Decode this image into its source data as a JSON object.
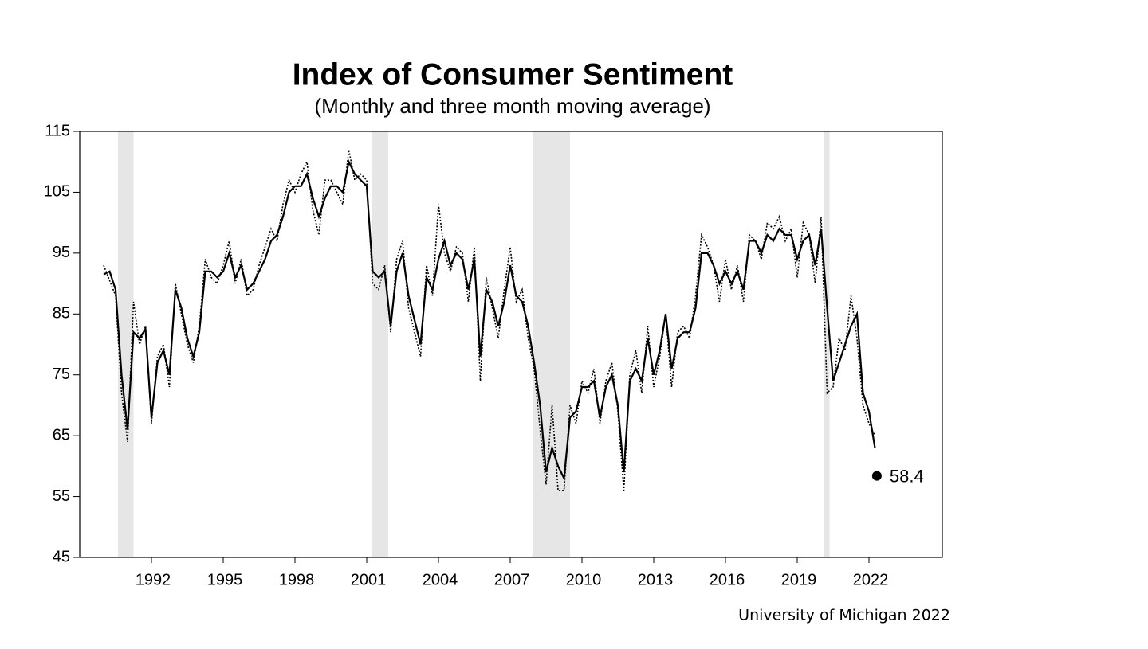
{
  "chart_data": {
    "type": "line",
    "title": "Index of Consumer Sentiment",
    "subtitle": "(Monthly and three month moving average)",
    "source": "University of Michigan 2022",
    "x": [
      1990,
      1990.25,
      1990.5,
      1990.75,
      1991,
      1991.25,
      1991.5,
      1991.75,
      1992,
      1992.25,
      1992.5,
      1992.75,
      1993,
      1993.25,
      1993.5,
      1993.75,
      1994,
      1994.25,
      1994.5,
      1994.75,
      1995,
      1995.25,
      1995.5,
      1995.75,
      1996,
      1996.25,
      1996.5,
      1996.75,
      1997,
      1997.25,
      1997.5,
      1997.75,
      1998,
      1998.25,
      1998.5,
      1998.75,
      1999,
      1999.25,
      1999.5,
      1999.75,
      2000,
      2000.25,
      2000.5,
      2000.75,
      2001,
      2001.25,
      2001.5,
      2001.75,
      2002,
      2002.25,
      2002.5,
      2002.75,
      2003,
      2003.25,
      2003.5,
      2003.75,
      2004,
      2004.25,
      2004.5,
      2004.75,
      2005,
      2005.25,
      2005.5,
      2005.75,
      2006,
      2006.25,
      2006.5,
      2006.75,
      2007,
      2007.25,
      2007.5,
      2007.75,
      2008,
      2008.25,
      2008.5,
      2008.75,
      2009,
      2009.25,
      2009.5,
      2009.75,
      2010,
      2010.25,
      2010.5,
      2010.75,
      2011,
      2011.25,
      2011.5,
      2011.75,
      2012,
      2012.25,
      2012.5,
      2012.75,
      2013,
      2013.25,
      2013.5,
      2013.75,
      2014,
      2014.25,
      2014.5,
      2014.75,
      2015,
      2015.25,
      2015.5,
      2015.75,
      2016,
      2016.25,
      2016.5,
      2016.75,
      2017,
      2017.25,
      2017.5,
      2017.75,
      2018,
      2018.25,
      2018.5,
      2018.75,
      2019,
      2019.25,
      2019.5,
      2019.75,
      2020,
      2020.25,
      2020.5,
      2020.75,
      2021,
      2021.25,
      2021.5,
      2021.75,
      2022,
      2022.25
    ],
    "series": [
      {
        "color": "#000000",
        "line_style": "dotted",
        "values": [
          93,
          90.5,
          88,
          72,
          64,
          87,
          80,
          83,
          67,
          78,
          80,
          73,
          90,
          85,
          80,
          77,
          83,
          94,
          91,
          90,
          93,
          97,
          90,
          94,
          88,
          89,
          93,
          96,
          99,
          97,
          103,
          107,
          105,
          108,
          110,
          102,
          98,
          107,
          107,
          105,
          103,
          112,
          107,
          108,
          107,
          90,
          89,
          93,
          82,
          94,
          97,
          86,
          82,
          78,
          93,
          88,
          103,
          95,
          92,
          96,
          95,
          87,
          96,
          74,
          91,
          86,
          81,
          89,
          96,
          87,
          89,
          81,
          76,
          66,
          57,
          70,
          56,
          56,
          70,
          67,
          74,
          72,
          76,
          67,
          74,
          77,
          69,
          56,
          75,
          79,
          72,
          83,
          73,
          78,
          85,
          73,
          82,
          83,
          81,
          88,
          98,
          96,
          93,
          87,
          94,
          89,
          93,
          87,
          98,
          97,
          94,
          100,
          99,
          101,
          97,
          99,
          91,
          100,
          98,
          90,
          101,
          72,
          73,
          81,
          79,
          88,
          81,
          70,
          67,
          65
        ]
      },
      {
        "color": "#000000",
        "line_style": "solid",
        "values": [
          91.5,
          92,
          89,
          75,
          66,
          82,
          81,
          82.5,
          68,
          77,
          79,
          75,
          89,
          86,
          81,
          78,
          82,
          92,
          92,
          91,
          92,
          95,
          91,
          93,
          89,
          90,
          92,
          94,
          97,
          98,
          101,
          105,
          106,
          106,
          108,
          104,
          101,
          104,
          106,
          106,
          105,
          110,
          108,
          107,
          106,
          92,
          91,
          92,
          83,
          92,
          95,
          88,
          84,
          80,
          91,
          89,
          94,
          97,
          93,
          95,
          94,
          89,
          94,
          78,
          89,
          87,
          83,
          87,
          93,
          88,
          87,
          83,
          77,
          70,
          59,
          63,
          60,
          58,
          68,
          69,
          73,
          73,
          74,
          68,
          73,
          75,
          70,
          59,
          74,
          76,
          74,
          81,
          75,
          79,
          85,
          76,
          81,
          82,
          82,
          86,
          95,
          95,
          93,
          90,
          92,
          90,
          92,
          89,
          97,
          97,
          95,
          98,
          97,
          99,
          98,
          98,
          94,
          97,
          98,
          93,
          99,
          86,
          74,
          77,
          80,
          83,
          85,
          72,
          69,
          63
        ]
      }
    ],
    "annotation": {
      "x": 2022.33,
      "value": 58.4,
      "color": "#000000"
    },
    "shaded_periods": [
      [
        1990.6,
        1991.25
      ],
      [
        2001.2,
        2001.9
      ],
      [
        2007.93,
        2009.5
      ],
      [
        2020.1,
        2020.35
      ]
    ],
    "shade_color": "#e6e6e6",
    "xlim": [
      1989,
      2025
    ],
    "xticks": [
      1992,
      1995,
      1998,
      2001,
      2004,
      2007,
      2010,
      2013,
      2016,
      2019,
      2022
    ],
    "ylim": [
      45,
      115
    ],
    "yticks": [
      45,
      55,
      65,
      75,
      85,
      95,
      105,
      115
    ]
  }
}
